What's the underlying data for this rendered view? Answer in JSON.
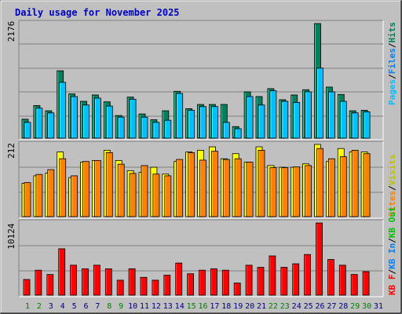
{
  "title": "Daily usage for November 2025",
  "colors": {
    "background": "#c0c0c0",
    "plot_bg": "#c0c0c0",
    "grid": "#808080",
    "hits": "#00805c",
    "files": "#00c0ff",
    "visits": "#ffff00",
    "sites": "#ff8000",
    "kbin": "#0080ff",
    "kbout": "#00c000",
    "kbf": "#ff0000",
    "title": "#0000c0",
    "weekday": "#000080",
    "weekend": "#008000"
  },
  "chart_data": [
    {
      "type": "bar",
      "panel": "hits-files-pages",
      "axis_max_label": "2176",
      "ylim": [
        0,
        2176
      ],
      "legend": [
        "Pages",
        "/",
        "Files",
        "/",
        "Hits"
      ],
      "x": [
        1,
        2,
        3,
        4,
        5,
        6,
        7,
        8,
        9,
        10,
        11,
        12,
        13,
        14,
        15,
        16,
        17,
        18,
        19,
        20,
        21,
        22,
        23,
        24,
        25,
        26,
        27,
        28,
        29,
        30,
        31
      ],
      "series": [
        {
          "name": "Hits",
          "values": [
            360,
            620,
            520,
            1280,
            840,
            700,
            820,
            690,
            430,
            780,
            460,
            350,
            520,
            890,
            560,
            640,
            640,
            640,
            220,
            880,
            790,
            940,
            730,
            820,
            920,
            2176,
            970,
            830,
            520,
            530,
            0
          ]
        },
        {
          "name": "Files",
          "values": [
            300,
            570,
            480,
            1060,
            790,
            630,
            760,
            610,
            400,
            740,
            400,
            300,
            340,
            850,
            530,
            600,
            600,
            300,
            180,
            790,
            630,
            900,
            700,
            680,
            880,
            1330,
            880,
            700,
            480,
            500,
            0
          ]
        },
        {
          "name": "Pages",
          "values": [
            0,
            0,
            0,
            0,
            0,
            0,
            0,
            0,
            0,
            0,
            0,
            0,
            0,
            0,
            0,
            0,
            0,
            0,
            0,
            0,
            0,
            0,
            0,
            0,
            0,
            0,
            0,
            0,
            0,
            0,
            0
          ]
        }
      ]
    },
    {
      "type": "bar",
      "panel": "visits-sites",
      "axis_max_label": "212",
      "ylim": [
        0,
        212
      ],
      "legend": [
        "Sites",
        "/",
        "Visits"
      ],
      "x": [
        1,
        2,
        3,
        4,
        5,
        6,
        7,
        8,
        9,
        10,
        11,
        12,
        13,
        14,
        15,
        16,
        17,
        18,
        19,
        20,
        21,
        22,
        23,
        24,
        25,
        26,
        27,
        28,
        29,
        30,
        31
      ],
      "series": [
        {
          "name": "Visits",
          "values": [
            98,
            120,
            128,
            190,
            115,
            160,
            165,
            195,
            165,
            135,
            130,
            145,
            125,
            162,
            190,
            195,
            205,
            170,
            185,
            160,
            205,
            150,
            145,
            145,
            155,
            212,
            162,
            200,
            190,
            190,
            0
          ]
        },
        {
          "name": "Sites",
          "values": [
            100,
            124,
            138,
            170,
            120,
            162,
            165,
            188,
            154,
            127,
            150,
            125,
            120,
            168,
            188,
            166,
            192,
            168,
            170,
            160,
            195,
            144,
            144,
            146,
            150,
            200,
            170,
            176,
            195,
            185,
            0
          ]
        }
      ]
    },
    {
      "type": "bar",
      "panel": "kbytes",
      "axis_max_label": "10124",
      "ylim": [
        0,
        10124
      ],
      "legend": [
        "KB F",
        "/",
        "KB In",
        "/",
        "KB Out"
      ],
      "x": [
        1,
        2,
        3,
        4,
        5,
        6,
        7,
        8,
        9,
        10,
        11,
        12,
        13,
        14,
        15,
        16,
        17,
        18,
        19,
        20,
        21,
        22,
        23,
        24,
        25,
        26,
        27,
        28,
        29,
        30,
        31
      ],
      "series": [
        {
          "name": "KB F",
          "values": [
            2200,
            3500,
            2900,
            6500,
            4200,
            3700,
            4200,
            3700,
            2100,
            3700,
            2500,
            2100,
            2800,
            4500,
            3000,
            3500,
            3700,
            3500,
            1700,
            4200,
            3900,
            5500,
            3900,
            4400,
            5700,
            10124,
            5000,
            4200,
            2900,
            3300,
            0
          ]
        },
        {
          "name": "KB In",
          "values": [
            0,
            0,
            0,
            0,
            0,
            0,
            0,
            0,
            0,
            0,
            0,
            0,
            0,
            0,
            0,
            0,
            0,
            0,
            0,
            0,
            0,
            0,
            0,
            0,
            0,
            0,
            0,
            0,
            0,
            0,
            0
          ]
        },
        {
          "name": "KB Out",
          "values": [
            0,
            0,
            0,
            0,
            0,
            0,
            0,
            0,
            0,
            0,
            0,
            0,
            0,
            0,
            0,
            0,
            0,
            0,
            0,
            0,
            0,
            0,
            0,
            0,
            0,
            0,
            0,
            0,
            0,
            0,
            0
          ]
        }
      ]
    }
  ],
  "days": [
    "1",
    "2",
    "3",
    "4",
    "5",
    "6",
    "7",
    "8",
    "9",
    "10",
    "11",
    "12",
    "13",
    "14",
    "15",
    "16",
    "17",
    "18",
    "19",
    "20",
    "21",
    "22",
    "23",
    "24",
    "25",
    "26",
    "27",
    "28",
    "29",
    "30",
    "31"
  ],
  "weekend_days": [
    1,
    2,
    8,
    9,
    15,
    16,
    22,
    23,
    29,
    30
  ]
}
